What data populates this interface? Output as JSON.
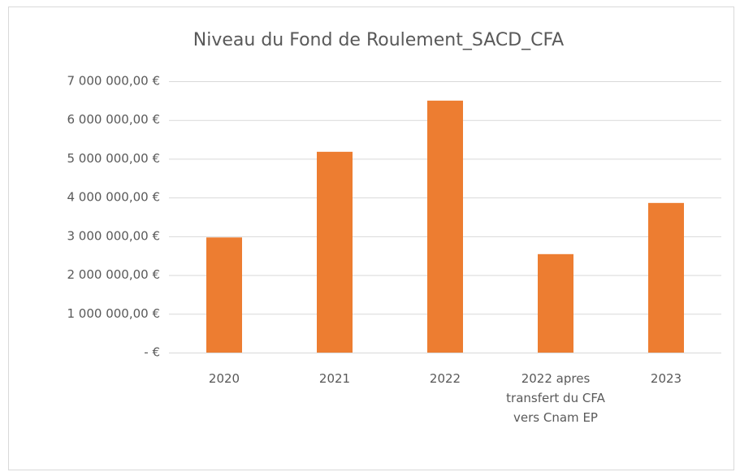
{
  "chart_data": {
    "type": "bar",
    "title": "Niveau du Fond de Roulement_SACD_CFA",
    "categories": [
      "2020",
      "2021",
      "2022",
      "2022 apres transfert du CFA vers Cnam EP",
      "2023"
    ],
    "values": [
      2970000,
      5180000,
      6500000,
      2540000,
      3860000
    ],
    "color": "#ed7d31",
    "ylim": [
      0,
      7000000
    ],
    "yticks": [
      {
        "value": 0,
        "label": "-   €"
      },
      {
        "value": 1000000,
        "label": "1 000 000,00 €"
      },
      {
        "value": 2000000,
        "label": "2 000 000,00 €"
      },
      {
        "value": 3000000,
        "label": "3 000 000,00 €"
      },
      {
        "value": 4000000,
        "label": "4 000 000,00 €"
      },
      {
        "value": 5000000,
        "label": "5 000 000,00 €"
      },
      {
        "value": 6000000,
        "label": "6 000 000,00 €"
      },
      {
        "value": 7000000,
        "label": "7 000 000,00 €"
      }
    ],
    "grid": true
  }
}
